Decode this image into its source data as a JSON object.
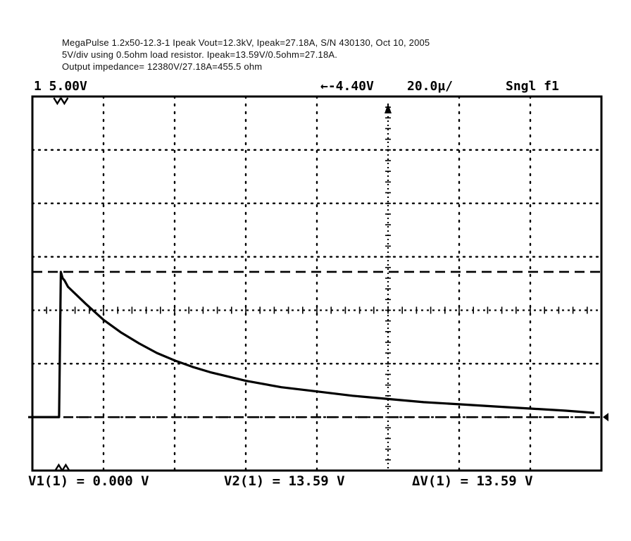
{
  "caption": {
    "line1": "MegaPulse 1.2x50-12.3-1 Ipeak Vout=12.3kV, Ipeak=27.18A, S/N 430130, Oct 10, 2005",
    "line2": "5V/div using 0.5ohm load resistor.  Ipeak=13.59V/0.5ohm=27.18A.",
    "line3": "Output impedance= 12380V/27.18A=455.5 ohm"
  },
  "scope_header": {
    "channel_scale": "1 5.00V",
    "trigger_level": "←-4.40V",
    "timebase": "20.0µ/",
    "mode": "Sngl f1"
  },
  "readouts": {
    "v1": "V1(1) = 0.000 V",
    "v2": "V2(1) = 13.59 V",
    "dv": "ΔV(1) = 13.59 V"
  },
  "chart_data": {
    "type": "line",
    "title": "",
    "xlabel": "",
    "ylabel": "",
    "x_unit": "µs",
    "y_unit": "V",
    "volts_per_div": 5.0,
    "time_per_div_us": 20.0,
    "xlim": [
      -40,
      120
    ],
    "ylim": [
      -5,
      30
    ],
    "grid": true,
    "cursors": [
      {
        "name": "V1",
        "value": 0.0
      },
      {
        "name": "V2",
        "value": 13.59
      }
    ],
    "series": [
      {
        "x": [
          -40,
          -35,
          -32.5,
          -32,
          -31.5,
          -31,
          -30,
          -25,
          -20,
          -15,
          -10,
          -5,
          0,
          5,
          10,
          20,
          30,
          40,
          50,
          60,
          70,
          80,
          90,
          100,
          110,
          118
        ],
        "y": [
          0,
          0,
          0,
          13.59,
          13.0,
          12.8,
          12.2,
          10.6,
          9.1,
          7.9,
          6.9,
          6.0,
          5.3,
          4.7,
          4.2,
          3.4,
          2.8,
          2.4,
          2.0,
          1.7,
          1.4,
          1.2,
          1.0,
          0.8,
          0.6,
          0.4
        ]
      }
    ]
  }
}
